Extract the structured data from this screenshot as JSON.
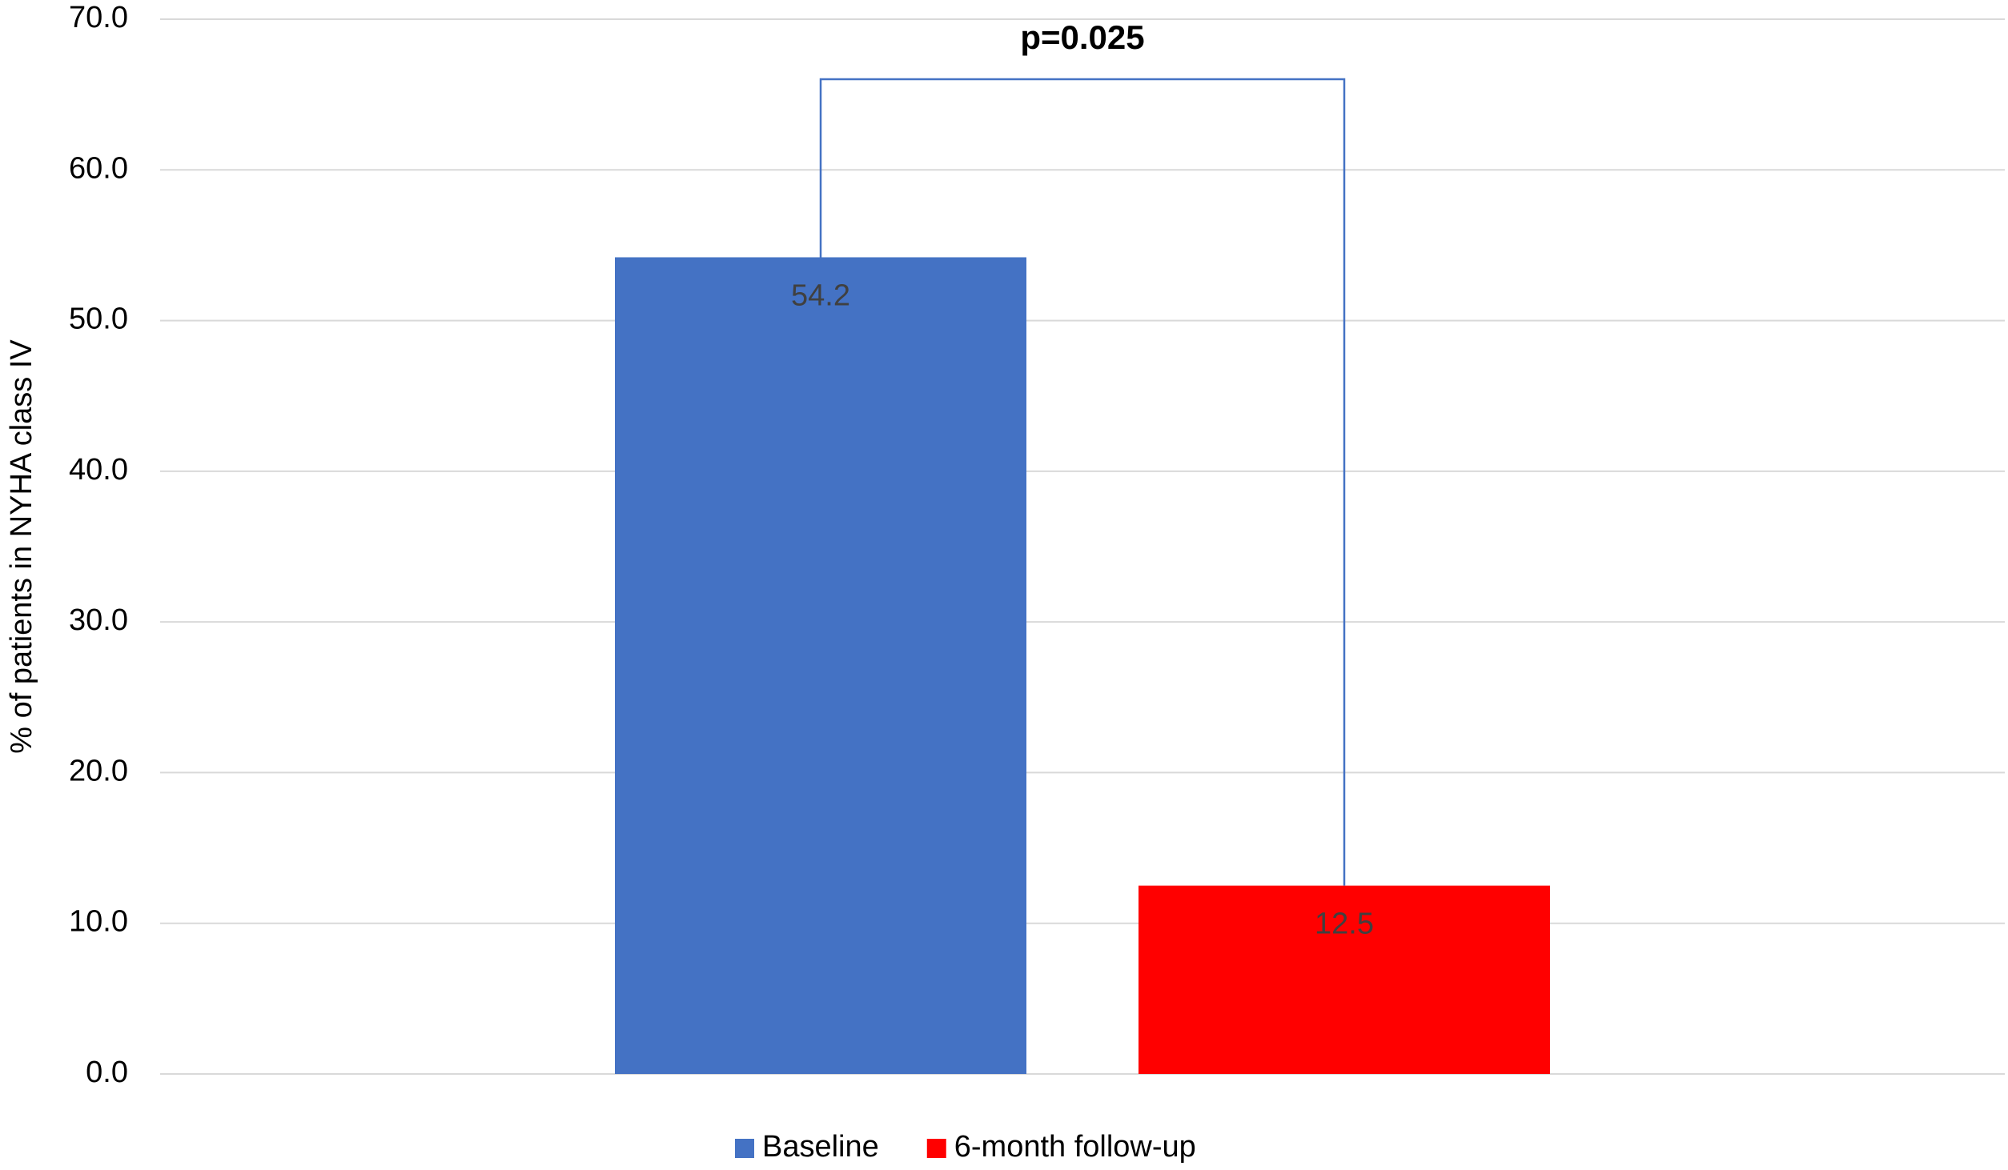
{
  "chart_data": {
    "type": "bar",
    "y_label": "% of patients in NYHA class IV",
    "annotation": "p=0.025",
    "categories": [
      null
    ],
    "series": [
      {
        "name": "Baseline",
        "color": "#4472c4",
        "values": [
          54.2
        ]
      },
      {
        "name": "6-month follow-up",
        "color": "#ff0000",
        "values": [
          12.5
        ]
      }
    ],
    "ylim": [
      0,
      70
    ],
    "yticks": [
      {
        "value": 0,
        "label": "0.0"
      },
      {
        "value": 10,
        "label": "10.0"
      },
      {
        "value": 20,
        "label": "20.0"
      },
      {
        "value": 30,
        "label": "30.0"
      },
      {
        "value": 40,
        "label": "40.0"
      },
      {
        "value": 50,
        "label": "50.0"
      },
      {
        "value": 60,
        "label": "60.0"
      },
      {
        "value": 70,
        "label": "70.0"
      }
    ],
    "grid": true,
    "legend": "bottom"
  }
}
